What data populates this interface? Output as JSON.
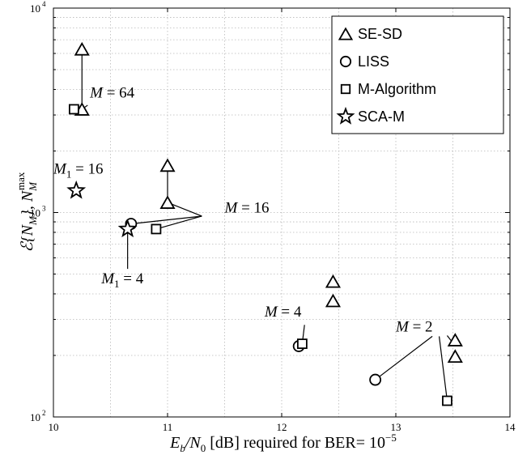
{
  "chart_data": {
    "type": "scatter",
    "x_axis": {
      "min": 10,
      "max": 14,
      "ticks": [
        10,
        11,
        12,
        13,
        14
      ],
      "tick_labels": [
        "10",
        "11",
        "12",
        "13",
        "14"
      ],
      "label_parts": [
        "E",
        "b",
        "/N",
        "0",
        " [dB] required for BER= 10",
        "−5"
      ]
    },
    "y_axis": {
      "scale": "log",
      "min": 100,
      "max": 10000,
      "ticks": [
        100,
        1000,
        10000
      ],
      "tick_labels": [
        [
          "10",
          "2"
        ],
        [
          "10",
          "3"
        ],
        [
          "10",
          "4"
        ]
      ],
      "label_parts": [
        "ℰ{N",
        "M",
        "}, N",
        "M",
        "max"
      ]
    },
    "grid": true,
    "legend_position": "top-right",
    "series": [
      {
        "name": "SE-SD",
        "marker": "triangle",
        "points": [
          [
            10.25,
            6300
          ],
          [
            10.25,
            3200
          ],
          [
            11.0,
            1700
          ],
          [
            11.0,
            1120
          ],
          [
            12.45,
            460
          ],
          [
            12.45,
            370
          ],
          [
            13.52,
            238
          ],
          [
            13.52,
            198
          ]
        ]
      },
      {
        "name": "LISS",
        "marker": "circle",
        "points": [
          [
            10.68,
            880
          ],
          [
            12.15,
            222
          ],
          [
            12.82,
            152
          ]
        ]
      },
      {
        "name": "M-Algorithm",
        "marker": "square",
        "points": [
          [
            10.18,
            3200
          ],
          [
            10.9,
            830
          ],
          [
            12.18,
            228
          ],
          [
            13.45,
            120
          ]
        ]
      },
      {
        "name": "SCA-M",
        "marker": "star",
        "points": [
          [
            10.2,
            1280
          ],
          [
            10.65,
            830
          ]
        ]
      }
    ],
    "annotations": [
      {
        "text_parts": [
          "M",
          " = 64"
        ],
        "x": 10.32,
        "y": 3650
      },
      {
        "text_parts": [
          "M",
          " = 16"
        ],
        "x": 11.5,
        "y": 1000
      },
      {
        "text_parts": [
          "M",
          "1",
          " = 16"
        ],
        "x": 10.0,
        "y": 1550
      },
      {
        "text_parts": [
          "M",
          "1",
          " = 4"
        ],
        "x": 10.42,
        "y": 450
      },
      {
        "text_parts": [
          "M",
          " = 4"
        ],
        "x": 11.85,
        "y": 310
      },
      {
        "text_parts": [
          "M",
          " = 2"
        ],
        "x": 13.0,
        "y": 262
      }
    ],
    "connectors": [
      [
        [
          10.25,
          6300
        ],
        [
          10.25,
          3200
        ]
      ],
      [
        [
          10.25,
          3200
        ],
        [
          10.3,
          3350
        ]
      ],
      [
        [
          11.0,
          1700
        ],
        [
          11.0,
          1120
        ]
      ],
      [
        [
          11.0,
          1120
        ],
        [
          11.3,
          960
        ]
      ],
      [
        [
          10.68,
          880
        ],
        [
          11.3,
          960
        ]
      ],
      [
        [
          10.9,
          830
        ],
        [
          11.3,
          960
        ]
      ],
      [
        [
          10.65,
          830
        ],
        [
          10.65,
          530
        ]
      ],
      [
        [
          12.18,
          228
        ],
        [
          12.2,
          282
        ]
      ],
      [
        [
          12.82,
          152
        ],
        [
          13.32,
          248
        ]
      ],
      [
        [
          13.45,
          120
        ],
        [
          13.38,
          248
        ]
      ],
      [
        [
          13.5,
          230
        ],
        [
          13.45,
          250
        ]
      ]
    ]
  }
}
